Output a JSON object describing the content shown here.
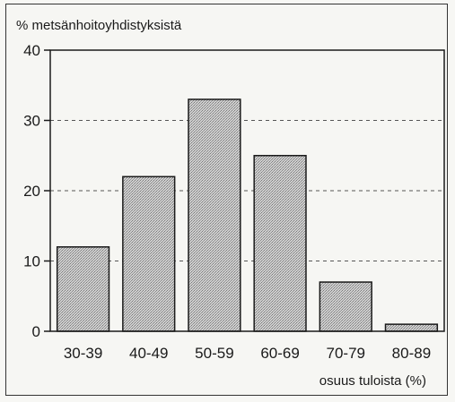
{
  "chart_data": {
    "type": "bar",
    "ylabel": "% metsänhoitoyhdistyksistä",
    "xlabel": "osuus tuloista (%)",
    "categories": [
      "30-39",
      "40-49",
      "50-59",
      "60-69",
      "70-79",
      "80-89"
    ],
    "values": [
      12,
      22,
      33,
      25,
      7,
      1
    ],
    "ylim": [
      0,
      40
    ],
    "yticks": [
      "0",
      "10",
      "20",
      "30",
      "40"
    ],
    "grid": "dashed horizontal",
    "colors": {
      "bar_fill": "#bdbdbd",
      "bar_stroke": "#1a1a1a",
      "plot_border": "#1a1a1a",
      "grid": "#555555"
    }
  }
}
